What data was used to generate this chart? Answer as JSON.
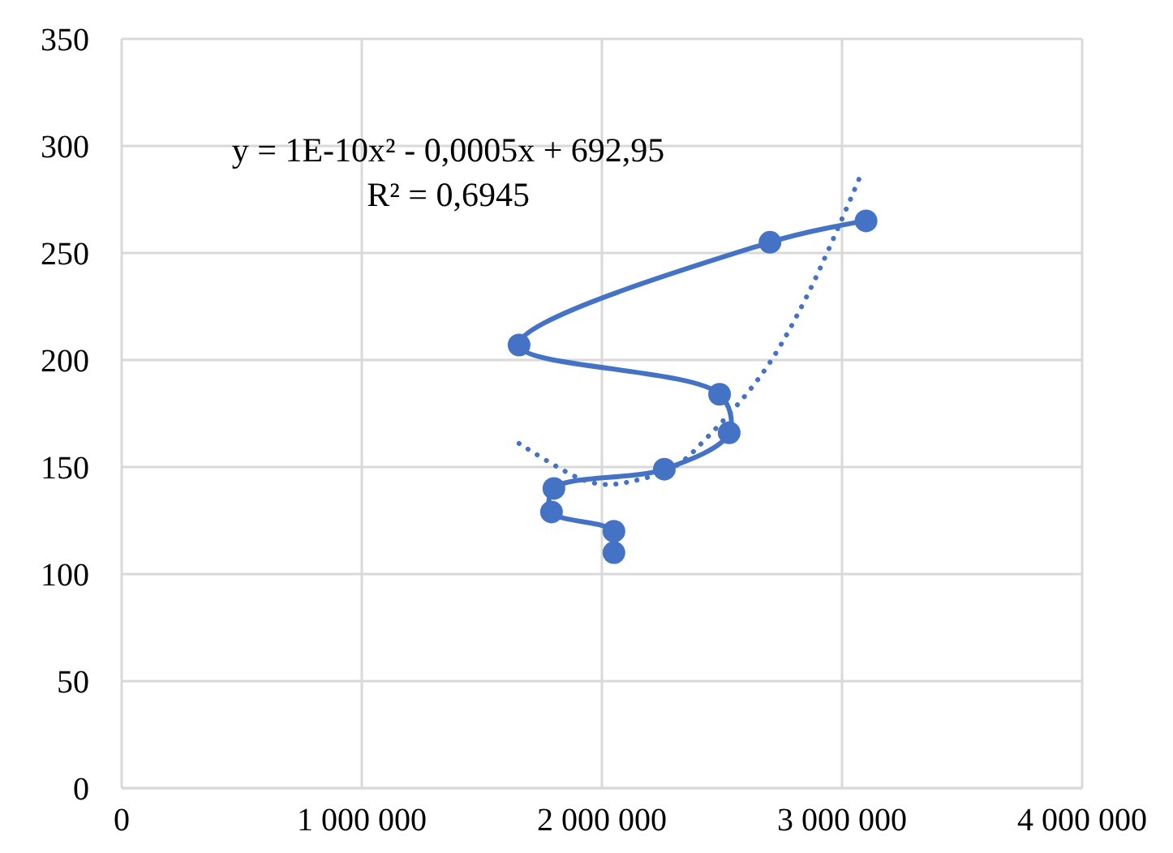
{
  "chart_data": {
    "type": "line",
    "xlim": [
      0,
      4000000
    ],
    "xticks": [
      {
        "value": 0,
        "label": "0"
      },
      {
        "value": 1000000,
        "label": "1 000 000"
      },
      {
        "value": 2000000,
        "label": "2 000 000"
      },
      {
        "value": 3000000,
        "label": "3 000 000"
      },
      {
        "value": 4000000,
        "label": "4 000 000"
      }
    ],
    "ylim": [
      0,
      350
    ],
    "yticks": [
      0,
      50,
      100,
      150,
      200,
      250,
      300,
      350
    ],
    "grid": true,
    "marker": "circle",
    "series": [
      {
        "color": "#4472c4",
        "line_style": "solid",
        "x": [
          2050000,
          2050000,
          1790000,
          1800000,
          2260000,
          2530000,
          2490000,
          1655000,
          2700000,
          3100000
        ],
        "values": [
          110,
          120,
          129,
          140,
          149,
          166,
          184,
          207,
          255,
          265
        ]
      },
      {
        "color": "#4472c4",
        "marker": "none",
        "line_style": "dotted",
        "x": [
          1655000,
          1900000,
          2000000,
          2110000,
          2300000,
          2440000,
          2670000,
          2850000,
          3080000
        ],
        "values": [
          161,
          145,
          142,
          143,
          150,
          164,
          194,
          229,
          287
        ]
      }
    ],
    "annotations": [
      "y = 1E-10x² - 0,0005x + 692,95",
      "R² = 0,6945"
    ]
  }
}
